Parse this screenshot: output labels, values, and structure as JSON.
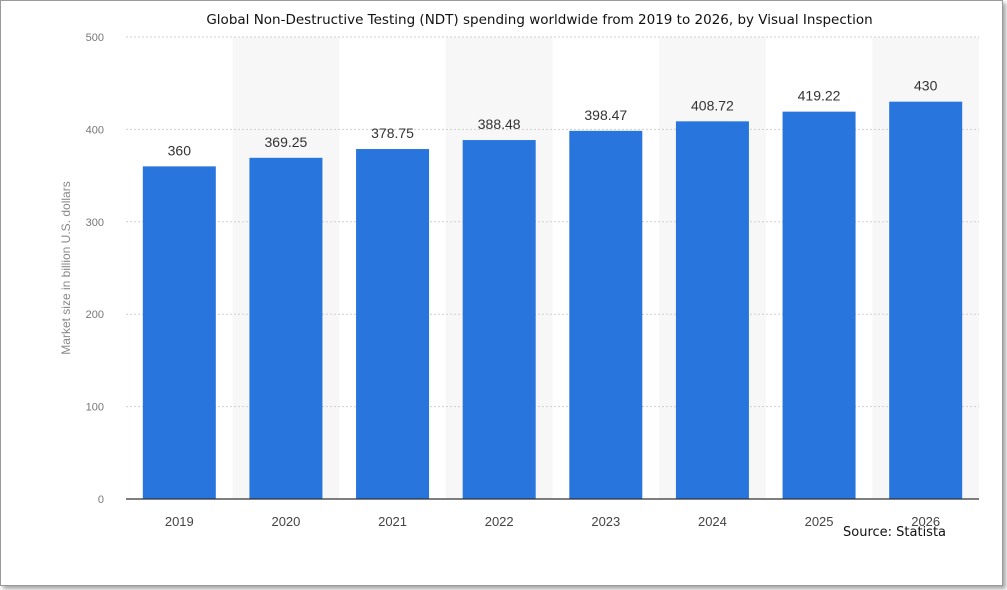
{
  "source": "Source: Statista",
  "chart_data": {
    "type": "bar",
    "title": "Global Non-Destructive Testing (NDT) spending worldwide from 2019 to 2026, by Visual Inspection",
    "xlabel": "",
    "ylabel": "Market size in billion U.S. dollars",
    "categories": [
      "2019",
      "2020",
      "2021",
      "2022",
      "2023",
      "2024",
      "2025",
      "2026"
    ],
    "values": [
      360,
      369.25,
      378.75,
      388.48,
      398.47,
      408.72,
      419.22,
      430
    ],
    "value_labels": [
      "360",
      "369.25",
      "378.75",
      "388.48",
      "398.47",
      "408.72",
      "419.22",
      "430"
    ],
    "ylim": [
      0,
      500
    ],
    "yticks": [
      "0",
      "100",
      "200",
      "300",
      "400",
      "500"
    ],
    "grid": true,
    "bar_color": "#2876dd",
    "alt_band_color": "#f7f7f7"
  }
}
